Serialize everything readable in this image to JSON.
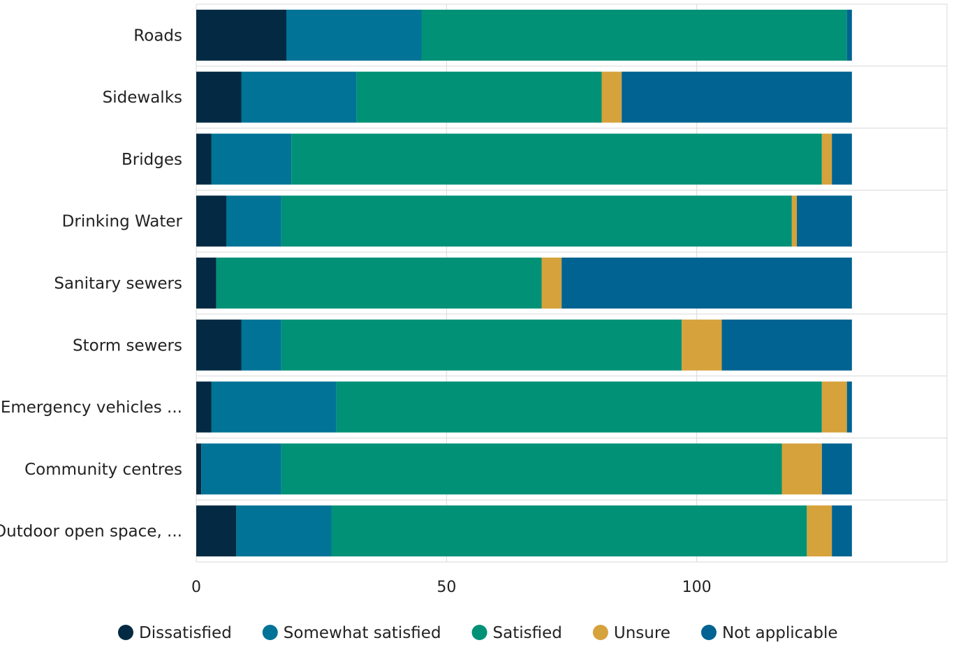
{
  "chart_data": {
    "type": "bar",
    "orientation": "horizontal",
    "stacked": true,
    "categories": [
      "Roads",
      "Sidewalks",
      "Bridges",
      "Drinking Water",
      "Sanitary sewers",
      "Storm sewers",
      "Emergency vehicles ...",
      "Community centres",
      "Outdoor open space, ..."
    ],
    "series": [
      {
        "name": "Dissatisfied",
        "color": "#032a42",
        "values": [
          18,
          9,
          3,
          6,
          4,
          9,
          3,
          1,
          8
        ]
      },
      {
        "name": "Somewhat satisfied",
        "color": "#007396",
        "values": [
          27,
          23,
          16,
          11,
          0,
          8,
          25,
          16,
          19
        ]
      },
      {
        "name": "Satisfied",
        "color": "#009177",
        "values": [
          85,
          49,
          106,
          102,
          65,
          80,
          97,
          100,
          95
        ]
      },
      {
        "name": "Unsure",
        "color": "#d6a23c",
        "values": [
          0,
          4,
          2,
          1,
          4,
          8,
          5,
          8,
          5
        ]
      },
      {
        "name": "Not applicable",
        "color": "#006391",
        "values": [
          1,
          46,
          4,
          11,
          58,
          26,
          1,
          6,
          4
        ]
      }
    ],
    "xticks": [
      0,
      50,
      100
    ],
    "xlim": [
      0,
      150
    ],
    "grid": true,
    "legend_position": "bottom",
    "title": "",
    "xlabel": "",
    "ylabel": ""
  }
}
